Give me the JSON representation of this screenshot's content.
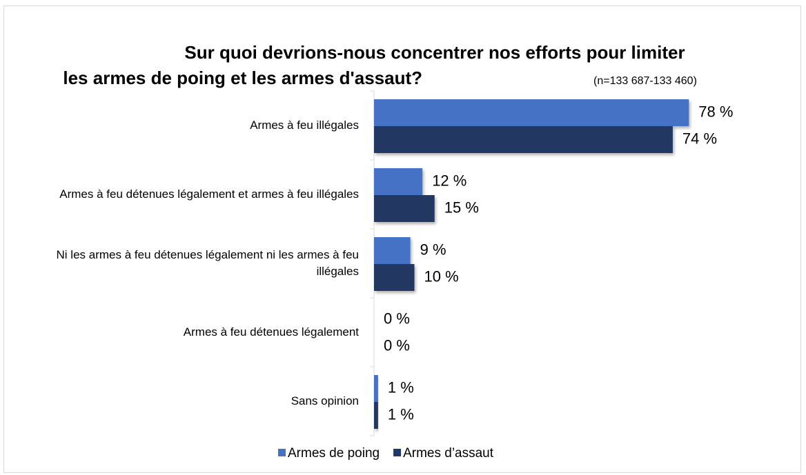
{
  "chart_data": {
    "type": "bar",
    "orientation": "horizontal",
    "title": [
      "Sur quoi devrions-nous concentrer nos efforts pour limiter",
      "les armes de poing et les armes d'assaut?"
    ],
    "subtitle": "(n=133 687-133 460)",
    "categories": [
      "Armes à feu illégales",
      "Armes à feu détenues légalement et armes à feu illégales",
      "Ni les armes à feu détenues légalement ni les armes à feu illégales",
      "Armes à feu détenues légalement",
      "Sans opinion"
    ],
    "series": [
      {
        "name": "Armes de poing",
        "color": "#4472c4",
        "values": [
          78,
          12,
          9,
          0,
          1
        ],
        "value_labels": [
          "78 %",
          "12 %",
          "9 %",
          "0 %",
          "1 %"
        ]
      },
      {
        "name": "Armes d’assaut",
        "color": "#203864",
        "values": [
          74,
          15,
          10,
          0,
          1
        ],
        "value_labels": [
          "74 %",
          "15 %",
          "10 %",
          "0 %",
          "1 %"
        ]
      }
    ],
    "xlim": [
      0,
      100
    ],
    "legend": "bottom"
  }
}
